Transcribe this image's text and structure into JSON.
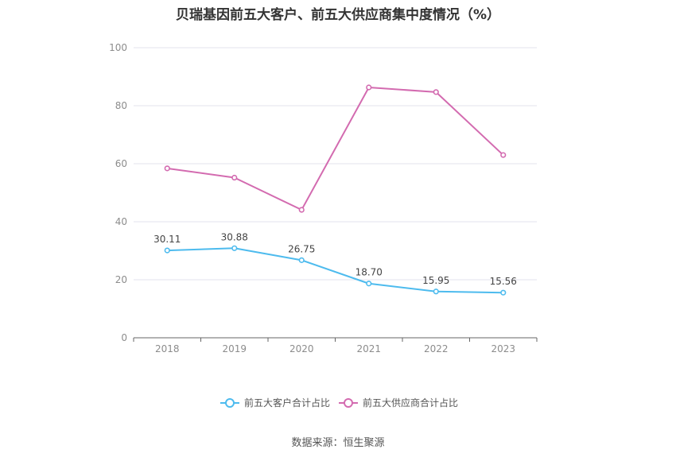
{
  "title": "贝瑞基因前五大客户、前五大供应商集中度情况（%）",
  "source": "数据来源：恒生聚源",
  "colors": {
    "customers": "#4dbbee",
    "suppliers": "#d36bb0",
    "grid": "#e3e3ee",
    "axis": "#666666"
  },
  "chart_data": {
    "type": "line",
    "title": "贝瑞基因前五大客户、前五大供应商集中度情况（%）",
    "categories": [
      "2018",
      "2019",
      "2020",
      "2021",
      "2022",
      "2023"
    ],
    "series": [
      {
        "name": "前五大客户合计占比",
        "values": [
          30.11,
          30.88,
          26.75,
          18.7,
          15.95,
          15.56
        ],
        "labels": [
          "30.11",
          "30.88",
          "26.75",
          "18.70",
          "15.95",
          "15.56"
        ],
        "color": "#4dbbee",
        "show_labels": true
      },
      {
        "name": "前五大供应商合计占比",
        "values": [
          58.4,
          55.2,
          44.1,
          86.3,
          84.7,
          63.0
        ],
        "color": "#d36bb0",
        "show_labels": false
      }
    ],
    "ylim": [
      0,
      100
    ],
    "yticks": [
      "0",
      "20",
      "40",
      "60",
      "80",
      "100"
    ],
    "xlabel": "",
    "ylabel": "",
    "grid": true,
    "legend_position": "bottom"
  }
}
